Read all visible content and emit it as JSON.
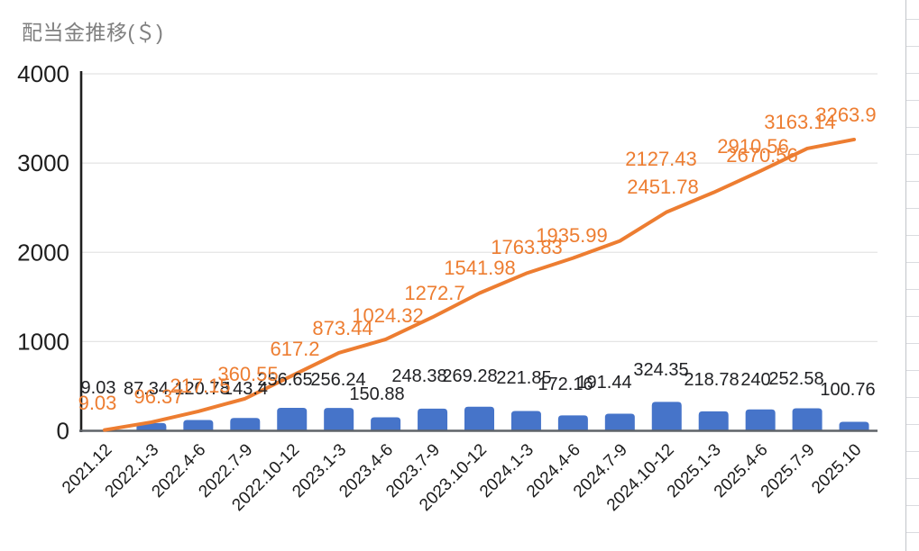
{
  "chart": {
    "title": "配当金推移(＄)"
  },
  "chart_data": {
    "type": "combo (bar + line)",
    "title": "配当金推移(＄)",
    "xlabel": "",
    "ylabel": "",
    "ylim": [
      0,
      4000
    ],
    "yticks": [
      "0",
      "1000",
      "2000",
      "3000",
      "4000"
    ],
    "grid": true,
    "legend_position": "none",
    "categories": [
      "2021.12",
      "2022.1-3",
      "2022.4-6",
      "2022.7-9",
      "2022.10-12",
      "2023.1-3",
      "2023.4-6",
      "2023.7-9",
      "2023.10-12",
      "2024.1-3",
      "2024.4-6",
      "2024.7-9",
      "2024.10-12",
      "2025.1-3",
      "2025.4-6",
      "2025.7-9",
      "2025.10"
    ],
    "series": [
      {
        "id": "quarterly_bars",
        "type": "bar",
        "color": "#4674C9",
        "values": [
          9.03,
          87.34,
          120.78,
          143.4,
          256.65,
          256.24,
          150.88,
          248.38,
          269.28,
          221.85,
          172.16,
          191.44,
          324.35,
          218.78,
          240,
          252.58,
          100.76
        ],
        "labels": [
          "9.03",
          "87.34",
          "120.78",
          "143.4",
          "256.65",
          "256.24",
          "150.88",
          "248.38",
          "269.28",
          "221.85",
          "172.16",
          "191.44",
          "324.35",
          "218.78",
          "240",
          "252.58",
          "100.76"
        ],
        "label_color": "#202124"
      },
      {
        "id": "cumulative_line",
        "type": "line",
        "color": "#ED7D31",
        "values": [
          9.03,
          96.37,
          217.15,
          360.55,
          617.2,
          873.44,
          1024.32,
          1272.7,
          1541.98,
          1763.83,
          1935.99,
          2127.43,
          2451.78,
          2670.56,
          2910.56,
          3163.14,
          3263.9
        ],
        "labels": [
          "9.03",
          "96.37",
          "217.15",
          "360.55",
          "617.2",
          "873.44",
          "1024.32",
          "1272.7",
          "1541.98",
          "1763.83",
          "1935.99",
          "2127.43",
          "2451.78",
          "2670.56",
          "2910.56",
          "3163.14",
          "3263.9"
        ],
        "label_color": "#ED7D31"
      }
    ]
  }
}
